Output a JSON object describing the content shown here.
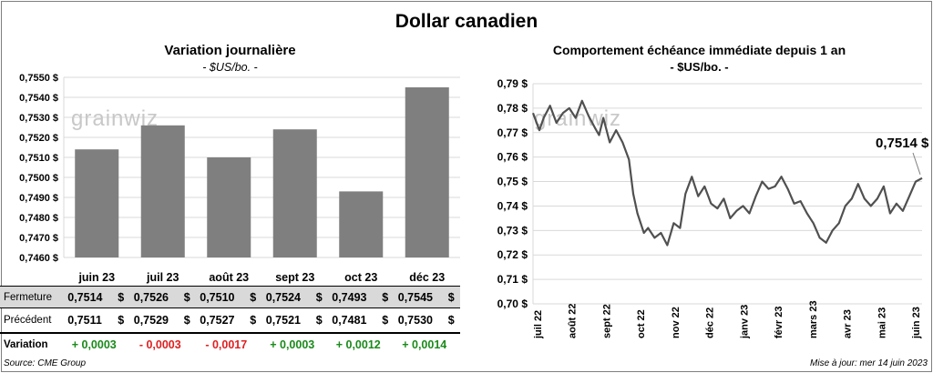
{
  "main_title": "Dollar canadien",
  "footer": {
    "source": "Source: CME Group",
    "updated": "Mise à jour: mer 14 juin 2023"
  },
  "left_chart": {
    "title": "Variation  journalière",
    "subtitle": "- $US/bo. -",
    "watermark": "grainwiz",
    "bar_color": "#7f7f7f"
  },
  "right_chart": {
    "title": "Comportement échéance immédiate depuis 1 an",
    "subtitle": "- $US/bo. -",
    "watermark": "grainwiz",
    "last_value_label": "0,7514 $",
    "line_color": "#505050"
  },
  "table": {
    "rows": [
      {
        "label": "Fermeture",
        "values": [
          "0,7514",
          "0,7526",
          "0,7510",
          "0,7524",
          "0,7493",
          "0,7545"
        ],
        "currency": "$"
      },
      {
        "label": "Précédent",
        "values": [
          "0,7511",
          "0,7529",
          "0,7527",
          "0,7521",
          "0,7481",
          "0,7530"
        ],
        "currency": "$"
      },
      {
        "label": "Variation",
        "values": [
          "+ 0,0003",
          "- 0,0003",
          "- 0,0017",
          "+ 0,0003",
          "+ 0,0012",
          "+ 0,0014"
        ]
      }
    ]
  },
  "chart_data": [
    {
      "type": "bar",
      "categories": [
        "juin 23",
        "juil 23",
        "août 23",
        "sept 23",
        "oct 23",
        "déc 23"
      ],
      "values": [
        0.7514,
        0.7526,
        0.751,
        0.7524,
        0.7493,
        0.7545
      ],
      "ylim": [
        0.746,
        0.755
      ],
      "yticks": [
        0.746,
        0.747,
        0.748,
        0.749,
        0.75,
        0.751,
        0.752,
        0.753,
        0.754,
        0.755
      ],
      "ytick_labels": [
        "0,7460 $",
        "0,7470 $",
        "0,7480 $",
        "0,7490 $",
        "0,7500 $",
        "0,7510 $",
        "0,7520 $",
        "0,7530 $",
        "0,7540 $",
        "0,7550 $"
      ],
      "grid": true
    },
    {
      "type": "line",
      "ylim": [
        0.7,
        0.79
      ],
      "yticks": [
        0.7,
        0.71,
        0.72,
        0.73,
        0.74,
        0.75,
        0.76,
        0.77,
        0.78,
        0.79
      ],
      "ytick_labels": [
        "0,70 $",
        "0,71 $",
        "0,72 $",
        "0,73 $",
        "0,74 $",
        "0,75 $",
        "0,76 $",
        "0,77 $",
        "0,78 $",
        "0,79 $"
      ],
      "xtick_labels": [
        "juil 22",
        "août 22",
        "sept 22",
        "oct 22",
        "nov 22",
        "déc 22",
        "janv 23",
        "févr 23",
        "mars 23",
        "avr 23",
        "mai 23",
        "juin 23"
      ],
      "xlim": [
        "2022-06-14",
        "2023-06-14"
      ],
      "x": [
        "2022-06-14",
        "2022-06-20",
        "2022-06-24",
        "2022-06-30",
        "2022-07-06",
        "2022-07-12",
        "2022-07-18",
        "2022-07-24",
        "2022-07-30",
        "2022-08-05",
        "2022-08-11",
        "2022-08-15",
        "2022-08-19",
        "2022-08-25",
        "2022-08-31",
        "2022-09-06",
        "2022-09-12",
        "2022-09-16",
        "2022-09-20",
        "2022-09-26",
        "2022-09-30",
        "2022-10-06",
        "2022-10-12",
        "2022-10-18",
        "2022-10-24",
        "2022-10-30",
        "2022-11-04",
        "2022-11-10",
        "2022-11-16",
        "2022-11-22",
        "2022-11-28",
        "2022-12-04",
        "2022-12-10",
        "2022-12-16",
        "2022-12-22",
        "2022-12-28",
        "2023-01-03",
        "2023-01-09",
        "2023-01-15",
        "2023-01-21",
        "2023-01-27",
        "2023-02-02",
        "2023-02-08",
        "2023-02-14",
        "2023-02-20",
        "2023-02-26",
        "2023-03-04",
        "2023-03-10",
        "2023-03-16",
        "2023-03-22",
        "2023-03-28",
        "2023-04-03",
        "2023-04-09",
        "2023-04-15",
        "2023-04-21",
        "2023-04-27",
        "2023-05-03",
        "2023-05-09",
        "2023-05-15",
        "2023-05-21",
        "2023-05-27",
        "2023-06-02",
        "2023-06-08",
        "2023-06-14"
      ],
      "values": [
        0.778,
        0.771,
        0.776,
        0.781,
        0.774,
        0.778,
        0.78,
        0.776,
        0.783,
        0.777,
        0.772,
        0.769,
        0.776,
        0.766,
        0.771,
        0.766,
        0.759,
        0.745,
        0.737,
        0.729,
        0.731,
        0.727,
        0.729,
        0.724,
        0.733,
        0.731,
        0.745,
        0.752,
        0.744,
        0.748,
        0.741,
        0.739,
        0.743,
        0.735,
        0.738,
        0.74,
        0.737,
        0.744,
        0.75,
        0.747,
        0.748,
        0.752,
        0.747,
        0.741,
        0.742,
        0.737,
        0.733,
        0.727,
        0.725,
        0.73,
        0.733,
        0.74,
        0.743,
        0.749,
        0.743,
        0.74,
        0.743,
        0.748,
        0.737,
        0.741,
        0.738,
        0.744,
        0.75,
        0.7514
      ],
      "grid": true
    }
  ]
}
